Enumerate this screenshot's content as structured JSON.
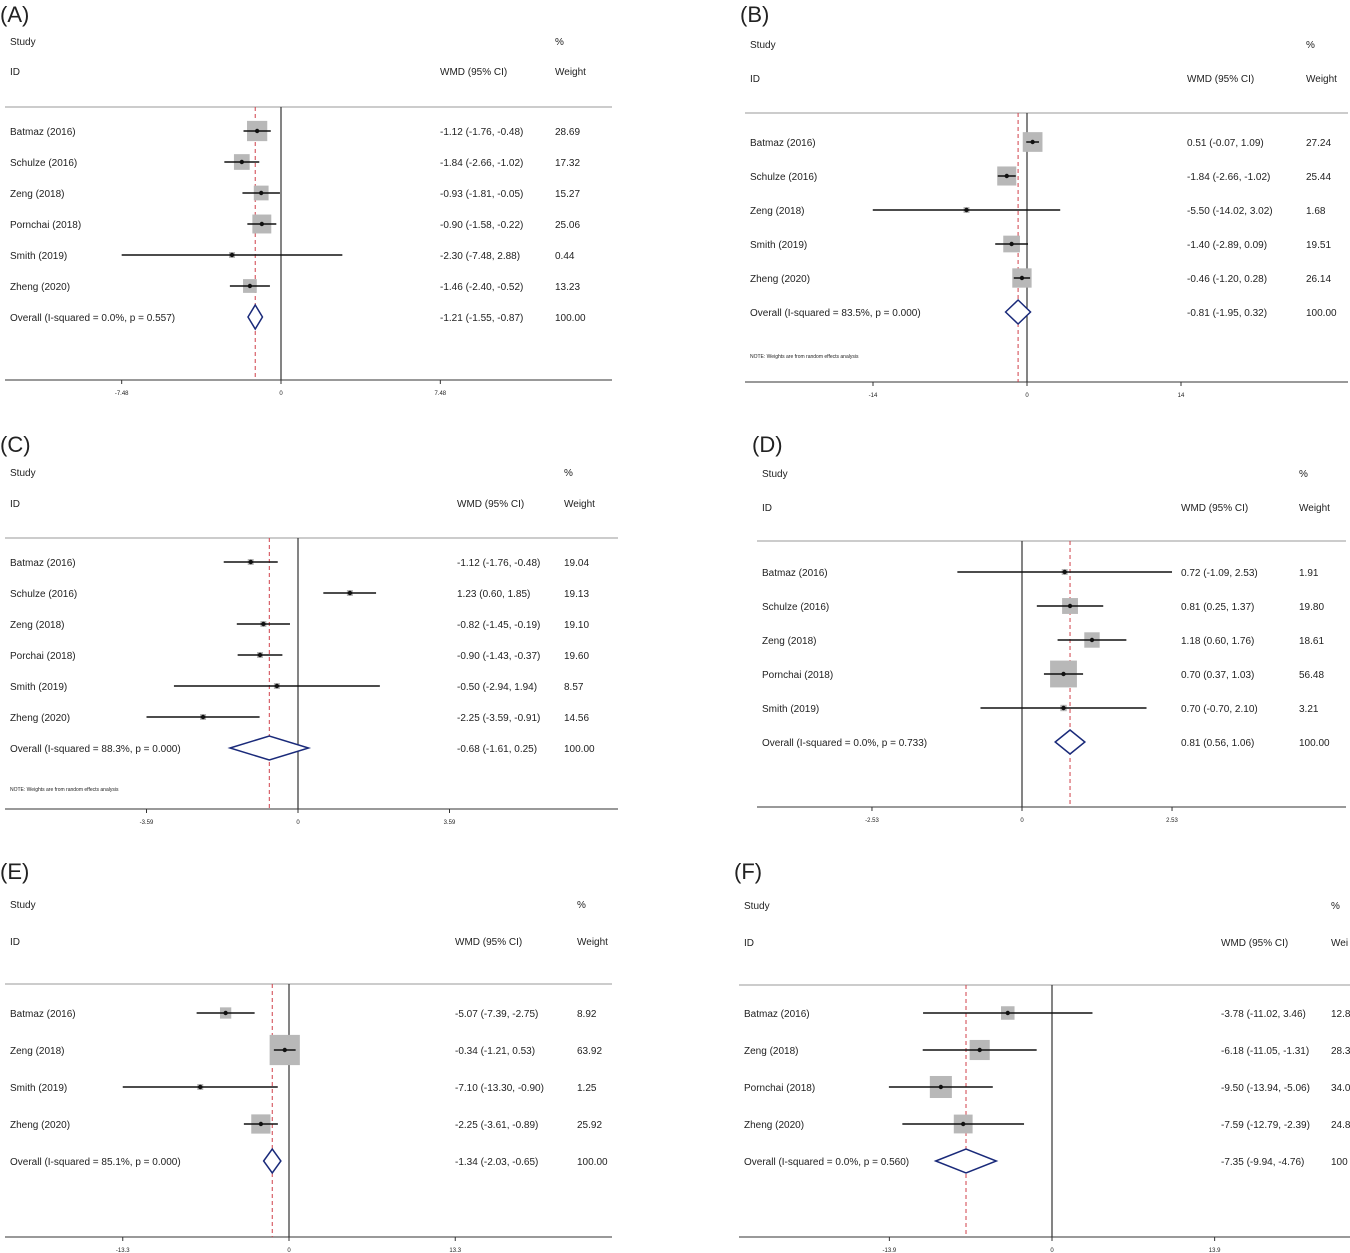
{
  "chart_data": [
    {
      "type": "forest",
      "panel_label": "(A)",
      "header": {
        "study": "Study",
        "id": "ID",
        "effect": "WMD (95% CI)",
        "pct": "%",
        "weight": "Weight"
      },
      "ticks": [
        "-7.48",
        "0",
        "7.48"
      ],
      "xlim": [
        -7.48,
        7.48
      ],
      "pooled_line": -1.21,
      "note": "",
      "studies": [
        {
          "label": "Batmaz (2016)",
          "est": -1.12,
          "lo": -1.76,
          "hi": -0.48,
          "ci_text": "-1.12 (-1.76, -0.48)",
          "weight": "28.69"
        },
        {
          "label": "Schulze (2016)",
          "est": -1.84,
          "lo": -2.66,
          "hi": -1.02,
          "ci_text": "-1.84 (-2.66, -1.02)",
          "weight": "17.32"
        },
        {
          "label": "Zeng (2018)",
          "est": -0.93,
          "lo": -1.81,
          "hi": -0.05,
          "ci_text": "-0.93 (-1.81, -0.05)",
          "weight": "15.27"
        },
        {
          "label": "Pornchai (2018)",
          "est": -0.9,
          "lo": -1.58,
          "hi": -0.22,
          "ci_text": "-0.90 (-1.58, -0.22)",
          "weight": "25.06"
        },
        {
          "label": "Smith (2019)",
          "est": -2.3,
          "lo": -7.48,
          "hi": 2.88,
          "ci_text": "-2.30 (-7.48, 2.88)",
          "weight": "0.44"
        },
        {
          "label": "Zheng (2020)",
          "est": -1.46,
          "lo": -2.4,
          "hi": -0.52,
          "ci_text": "-1.46 (-2.40, -0.52)",
          "weight": "13.23"
        }
      ],
      "overall": {
        "label": "Overall  (I-squared = 0.0%, p = 0.557)",
        "est": -1.21,
        "lo": -1.55,
        "hi": -0.87,
        "ci_text": "-1.21 (-1.55, -0.87)",
        "weight": "100.00"
      }
    },
    {
      "type": "forest",
      "panel_label": "(B)",
      "header": {
        "study": "Study",
        "id": "ID",
        "effect": "WMD (95% CI)",
        "pct": "%",
        "weight": "Weight"
      },
      "ticks": [
        "-14",
        "0",
        "14"
      ],
      "xlim": [
        -14,
        14
      ],
      "pooled_line": -0.81,
      "note": "NOTE: Weights are from random effects analysis",
      "studies": [
        {
          "label": "Batmaz (2016)",
          "est": 0.51,
          "lo": -0.07,
          "hi": 1.09,
          "ci_text": "0.51 (-0.07, 1.09)",
          "weight": "27.24"
        },
        {
          "label": "Schulze (2016)",
          "est": -1.84,
          "lo": -2.66,
          "hi": -1.02,
          "ci_text": "-1.84 (-2.66, -1.02)",
          "weight": "25.44"
        },
        {
          "label": "Zeng (2018)",
          "est": -5.5,
          "lo": -14.02,
          "hi": 3.02,
          "ci_text": "-5.50 (-14.02, 3.02)",
          "weight": "1.68"
        },
        {
          "label": "Smith (2019)",
          "est": -1.4,
          "lo": -2.89,
          "hi": 0.09,
          "ci_text": "-1.40 (-2.89, 0.09)",
          "weight": "19.51"
        },
        {
          "label": "Zheng (2020)",
          "est": -0.46,
          "lo": -1.2,
          "hi": 0.28,
          "ci_text": "-0.46 (-1.20, 0.28)",
          "weight": "26.14"
        }
      ],
      "overall": {
        "label": "Overall  (I-squared = 83.5%, p = 0.000)",
        "est": -0.81,
        "lo": -1.95,
        "hi": 0.32,
        "ci_text": "-0.81 (-1.95, 0.32)",
        "weight": "100.00"
      }
    },
    {
      "type": "forest",
      "panel_label": "(C)",
      "header": {
        "study": "Study",
        "id": "ID",
        "effect": "WMD (95% CI)",
        "pct": "%",
        "weight": "Weight"
      },
      "ticks": [
        "-3.59",
        "0",
        "3.59"
      ],
      "xlim": [
        -3.59,
        3.59
      ],
      "pooled_line": -0.68,
      "note": "NOTE: Weights are from random effects analysis",
      "studies": [
        {
          "label": "Batmaz (2016)",
          "est": -1.12,
          "lo": -1.76,
          "hi": -0.48,
          "ci_text": "-1.12 (-1.76, -0.48)",
          "weight": "19.04"
        },
        {
          "label": "Schulze (2016)",
          "est": 1.23,
          "lo": 0.6,
          "hi": 1.85,
          "ci_text": "1.23 (0.60, 1.85)",
          "weight": "19.13"
        },
        {
          "label": "Zeng (2018)",
          "est": -0.82,
          "lo": -1.45,
          "hi": -0.19,
          "ci_text": "-0.82 (-1.45, -0.19)",
          "weight": "19.10"
        },
        {
          "label": "Porchai (2018)",
          "est": -0.9,
          "lo": -1.43,
          "hi": -0.37,
          "ci_text": "-0.90 (-1.43, -0.37)",
          "weight": "19.60"
        },
        {
          "label": "Smith (2019)",
          "est": -0.5,
          "lo": -2.94,
          "hi": 1.94,
          "ci_text": "-0.50 (-2.94, 1.94)",
          "weight": "8.57"
        },
        {
          "label": "Zheng (2020)",
          "est": -2.25,
          "lo": -3.59,
          "hi": -0.91,
          "ci_text": "-2.25 (-3.59, -0.91)",
          "weight": "14.56"
        }
      ],
      "overall": {
        "label": "Overall  (I-squared = 88.3%, p = 0.000)",
        "est": -0.68,
        "lo": -1.61,
        "hi": 0.25,
        "ci_text": "-0.68 (-1.61, 0.25)",
        "weight": "100.00"
      }
    },
    {
      "type": "forest",
      "panel_label": "(D)",
      "header": {
        "study": "Study",
        "id": "ID",
        "effect": "WMD (95% CI)",
        "pct": "%",
        "weight": "Weight"
      },
      "ticks": [
        "-2.53",
        "0",
        "2.53"
      ],
      "xlim": [
        -2.53,
        2.53
      ],
      "pooled_line": 0.81,
      "note": "",
      "studies": [
        {
          "label": "Batmaz (2016)",
          "est": 0.72,
          "lo": -1.09,
          "hi": 2.53,
          "ci_text": "0.72 (-1.09, 2.53)",
          "weight": "1.91"
        },
        {
          "label": "Schulze (2016)",
          "est": 0.81,
          "lo": 0.25,
          "hi": 1.37,
          "ci_text": "0.81 (0.25, 1.37)",
          "weight": "19.80"
        },
        {
          "label": "Zeng (2018)",
          "est": 1.18,
          "lo": 0.6,
          "hi": 1.76,
          "ci_text": "1.18 (0.60, 1.76)",
          "weight": "18.61"
        },
        {
          "label": "Pornchai (2018)",
          "est": 0.7,
          "lo": 0.37,
          "hi": 1.03,
          "ci_text": "0.70 (0.37, 1.03)",
          "weight": "56.48"
        },
        {
          "label": "Smith (2019)",
          "est": 0.7,
          "lo": -0.7,
          "hi": 2.1,
          "ci_text": "0.70 (-0.70, 2.10)",
          "weight": "3.21"
        }
      ],
      "overall": {
        "label": "Overall  (I-squared = 0.0%, p = 0.733)",
        "est": 0.81,
        "lo": 0.56,
        "hi": 1.06,
        "ci_text": "0.81 (0.56, 1.06)",
        "weight": "100.00"
      }
    },
    {
      "type": "forest",
      "panel_label": "(E)",
      "header": {
        "study": "Study",
        "id": "ID",
        "effect": "WMD (95% CI)",
        "pct": "%",
        "weight": "Weight"
      },
      "ticks": [
        "-13.3",
        "0",
        "13.3"
      ],
      "xlim": [
        -13.3,
        13.3
      ],
      "pooled_line": -1.34,
      "note": "",
      "studies": [
        {
          "label": "Batmaz (2016)",
          "est": -5.07,
          "lo": -7.39,
          "hi": -2.75,
          "ci_text": "-5.07 (-7.39, -2.75)",
          "weight": "8.92"
        },
        {
          "label": "Zeng (2018)",
          "est": -0.34,
          "lo": -1.21,
          "hi": 0.53,
          "ci_text": "-0.34 (-1.21, 0.53)",
          "weight": "63.92"
        },
        {
          "label": "Smith (2019)",
          "est": -7.1,
          "lo": -13.3,
          "hi": -0.9,
          "ci_text": "-7.10 (-13.30, -0.90)",
          "weight": "1.25"
        },
        {
          "label": "Zheng (2020)",
          "est": -2.25,
          "lo": -3.61,
          "hi": -0.89,
          "ci_text": "-2.25 (-3.61, -0.89)",
          "weight": "25.92"
        }
      ],
      "overall": {
        "label": "Overall  (I-squared = 85.1%, p = 0.000)",
        "est": -1.34,
        "lo": -2.03,
        "hi": -0.65,
        "ci_text": "-1.34 (-2.03, -0.65)",
        "weight": "100.00"
      }
    },
    {
      "type": "forest",
      "panel_label": "(F)",
      "header": {
        "study": "Study",
        "id": "ID",
        "effect": "WMD (95% CI)",
        "pct": "%",
        "weight": "Wei"
      },
      "ticks": [
        "-13.9",
        "0",
        "13.9"
      ],
      "xlim": [
        -13.9,
        13.9
      ],
      "pooled_line": -7.35,
      "note": "",
      "studies": [
        {
          "label": "Batmaz (2016)",
          "est": -3.78,
          "lo": -11.02,
          "hi": 3.46,
          "ci_text": "-3.78 (-11.02, 3.46)",
          "weight": "12.8"
        },
        {
          "label": "Zeng (2018)",
          "est": -6.18,
          "lo": -11.05,
          "hi": -1.31,
          "ci_text": "-6.18 (-11.05, -1.31)",
          "weight": "28.3"
        },
        {
          "label": "Pornchai (2018)",
          "est": -9.5,
          "lo": -13.94,
          "hi": -5.06,
          "ci_text": "-9.50 (-13.94, -5.06)",
          "weight": "34.0"
        },
        {
          "label": "Zheng (2020)",
          "est": -7.59,
          "lo": -12.79,
          "hi": -2.39,
          "ci_text": "-7.59 (-12.79, -2.39)",
          "weight": "24.8"
        }
      ],
      "overall": {
        "label": "Overall  (I-squared = 0.0%, p = 0.560)",
        "est": -7.35,
        "lo": -9.94,
        "hi": -4.76,
        "ci_text": "-7.35 (-9.94, -4.76)",
        "weight": "100"
      }
    }
  ]
}
